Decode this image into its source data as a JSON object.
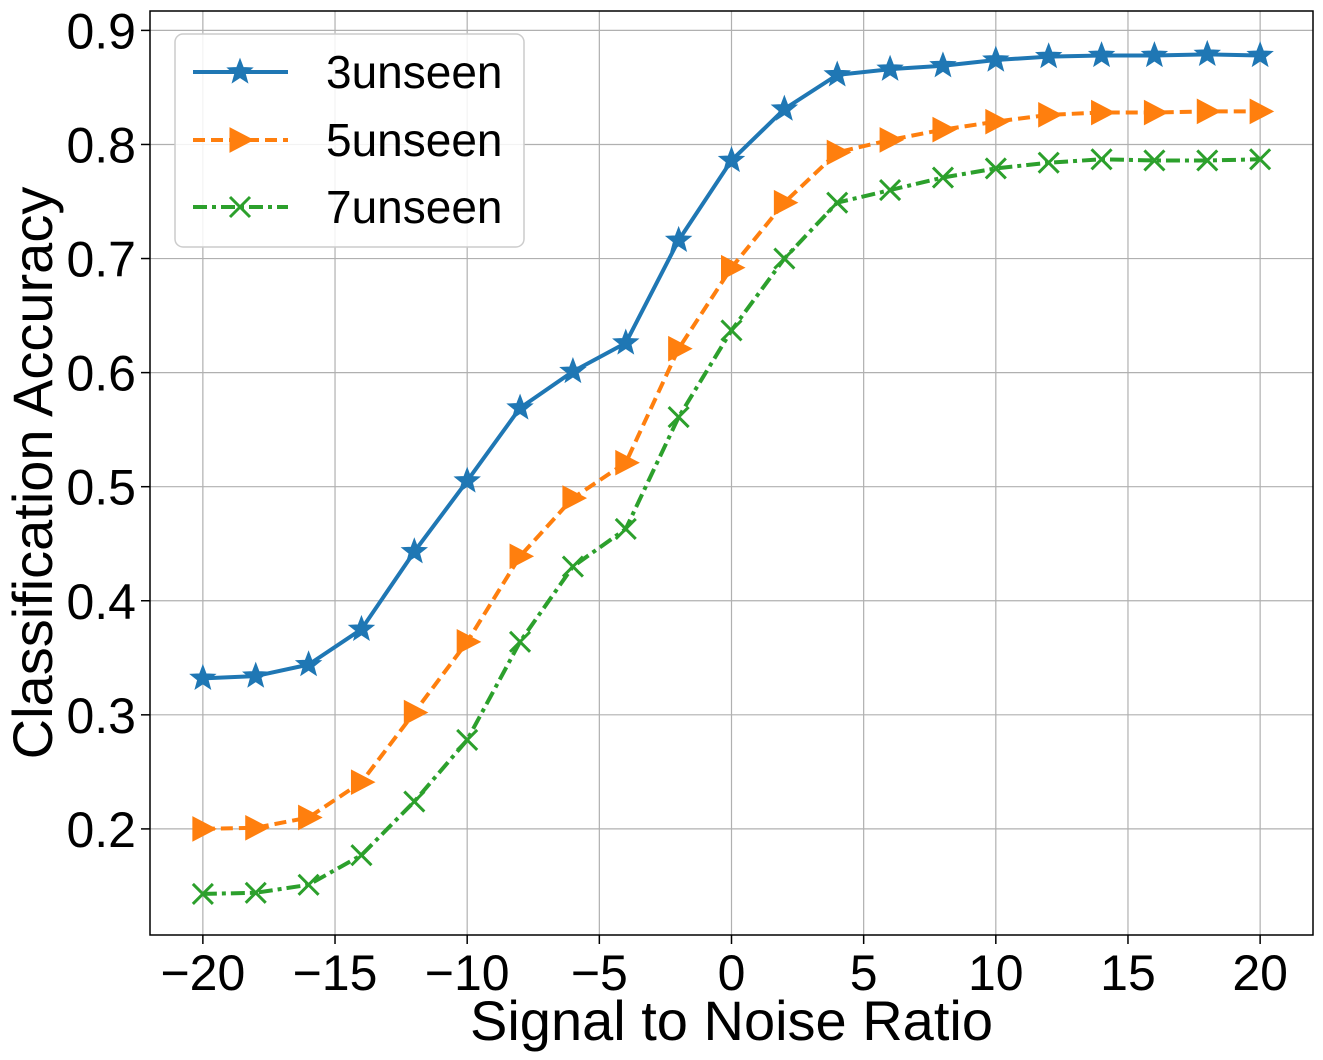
{
  "chart_data": {
    "type": "line",
    "xlabel": "Signal to Noise Ratio",
    "ylabel": "Classification Accuracy",
    "xlim": [
      -22,
      22
    ],
    "ylim": [
      0.107,
      0.917
    ],
    "xticks": [
      -20,
      -15,
      -10,
      -5,
      0,
      5,
      10,
      15,
      20
    ],
    "xtick_labels": [
      "−20",
      "−15",
      "−10",
      "−5",
      "0",
      "5",
      "10",
      "15",
      "20"
    ],
    "yticks": [
      0.2,
      0.3,
      0.4,
      0.5,
      0.6,
      0.7,
      0.8,
      0.9
    ],
    "ytick_labels": [
      "0.2",
      "0.3",
      "0.4",
      "0.5",
      "0.6",
      "0.7",
      "0.8",
      "0.9"
    ],
    "grid": true,
    "legend_position": "top-left",
    "x": [
      -20,
      -18,
      -16,
      -14,
      -12,
      -10,
      -8,
      -6,
      -4,
      -2,
      0,
      2,
      4,
      6,
      8,
      10,
      12,
      14,
      16,
      18,
      20
    ],
    "series": [
      {
        "name": "3unseen",
        "color": "#1f77b4",
        "line_style": "solid",
        "marker": "star",
        "values": [
          0.332,
          0.334,
          0.344,
          0.375,
          0.443,
          0.505,
          0.569,
          0.601,
          0.626,
          0.716,
          0.786,
          0.831,
          0.861,
          0.866,
          0.869,
          0.874,
          0.877,
          0.878,
          0.878,
          0.879,
          0.878
        ]
      },
      {
        "name": "5unseen",
        "color": "#ff7f0e",
        "line_style": "dashed",
        "marker": "triangle-right",
        "values": [
          0.2,
          0.201,
          0.21,
          0.241,
          0.302,
          0.364,
          0.439,
          0.49,
          0.521,
          0.621,
          0.692,
          0.749,
          0.793,
          0.804,
          0.813,
          0.82,
          0.826,
          0.828,
          0.828,
          0.829,
          0.829
        ]
      },
      {
        "name": "7unseen",
        "color": "#2ca02c",
        "line_style": "dashdot",
        "marker": "x",
        "values": [
          0.143,
          0.144,
          0.151,
          0.177,
          0.224,
          0.278,
          0.364,
          0.43,
          0.463,
          0.561,
          0.637,
          0.7,
          0.749,
          0.76,
          0.771,
          0.779,
          0.784,
          0.787,
          0.786,
          0.786,
          0.787
        ]
      }
    ]
  }
}
